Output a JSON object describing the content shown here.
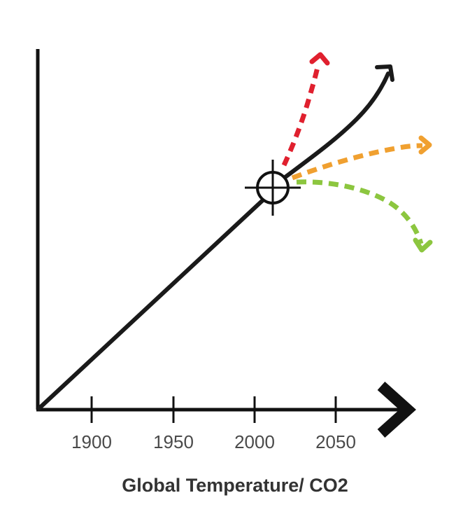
{
  "xlabel": "Global Temperature/ CO2",
  "ticks": [
    "1900",
    "1950",
    "2000",
    "2050"
  ],
  "colors": {
    "axis": "#111111",
    "main_line": "#1a1a1a",
    "red": "#e0202e",
    "orange": "#f0a030",
    "green": "#8cc63f"
  }
}
